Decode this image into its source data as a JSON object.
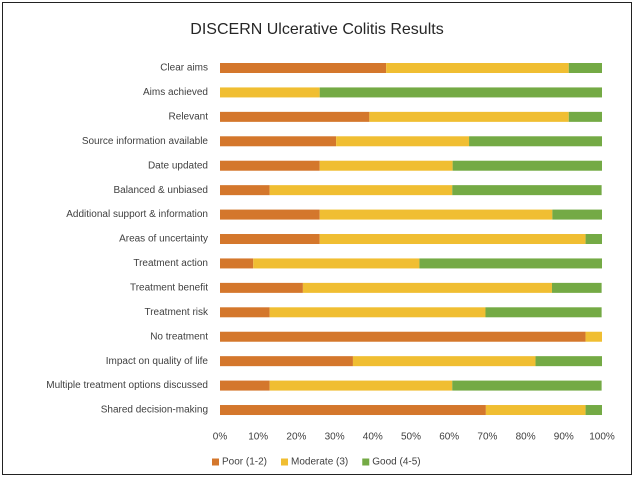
{
  "chart_data": {
    "type": "stacked-bar-horizontal",
    "title": "DISCERN Ulcerative Colitis Results",
    "categories": [
      "Clear aims",
      "Aims achieved",
      "Relevant",
      "Source information available",
      "Date updated",
      "Balanced & unbiased",
      "Additional support & information",
      "Areas of uncertainty",
      "Treatment action",
      "Treatment benefit",
      "Treatment risk",
      "No treatment",
      "Impact on quality of life",
      "Multiple treatment options discussed",
      "Shared decision-making"
    ],
    "series": [
      {
        "name": "Poor (1-2)",
        "color": "#d4772c",
        "values": [
          43.5,
          0,
          39.1,
          30.4,
          26.1,
          13.0,
          26.1,
          26.1,
          8.7,
          21.7,
          13.0,
          95.7,
          34.8,
          13.0,
          69.6
        ]
      },
      {
        "name": "Moderate (3)",
        "color": "#f0be32",
        "values": [
          47.8,
          26.1,
          52.2,
          34.8,
          34.8,
          47.8,
          60.9,
          69.6,
          43.5,
          65.2,
          56.5,
          4.3,
          47.8,
          47.8,
          26.1
        ]
      },
      {
        "name": "Good (4-5)",
        "color": "#74aa45",
        "values": [
          8.7,
          73.9,
          8.7,
          34.8,
          39.1,
          39.1,
          13.0,
          4.3,
          47.8,
          13.0,
          30.4,
          0,
          17.4,
          39.1,
          4.3
        ]
      }
    ],
    "xlim": [
      0,
      100
    ],
    "xticks": [
      {
        "value": 0,
        "label": "0%"
      },
      {
        "value": 10,
        "label": "10%"
      },
      {
        "value": 20,
        "label": "20%"
      },
      {
        "value": 30,
        "label": "30%"
      },
      {
        "value": 40,
        "label": "40%"
      },
      {
        "value": 50,
        "label": "50%"
      },
      {
        "value": 60,
        "label": "60%"
      },
      {
        "value": 70,
        "label": "70%"
      },
      {
        "value": 80,
        "label": "80%"
      },
      {
        "value": 90,
        "label": "90%"
      },
      {
        "value": 100,
        "label": "100%"
      }
    ],
    "grid": false,
    "legend": "bottom"
  }
}
